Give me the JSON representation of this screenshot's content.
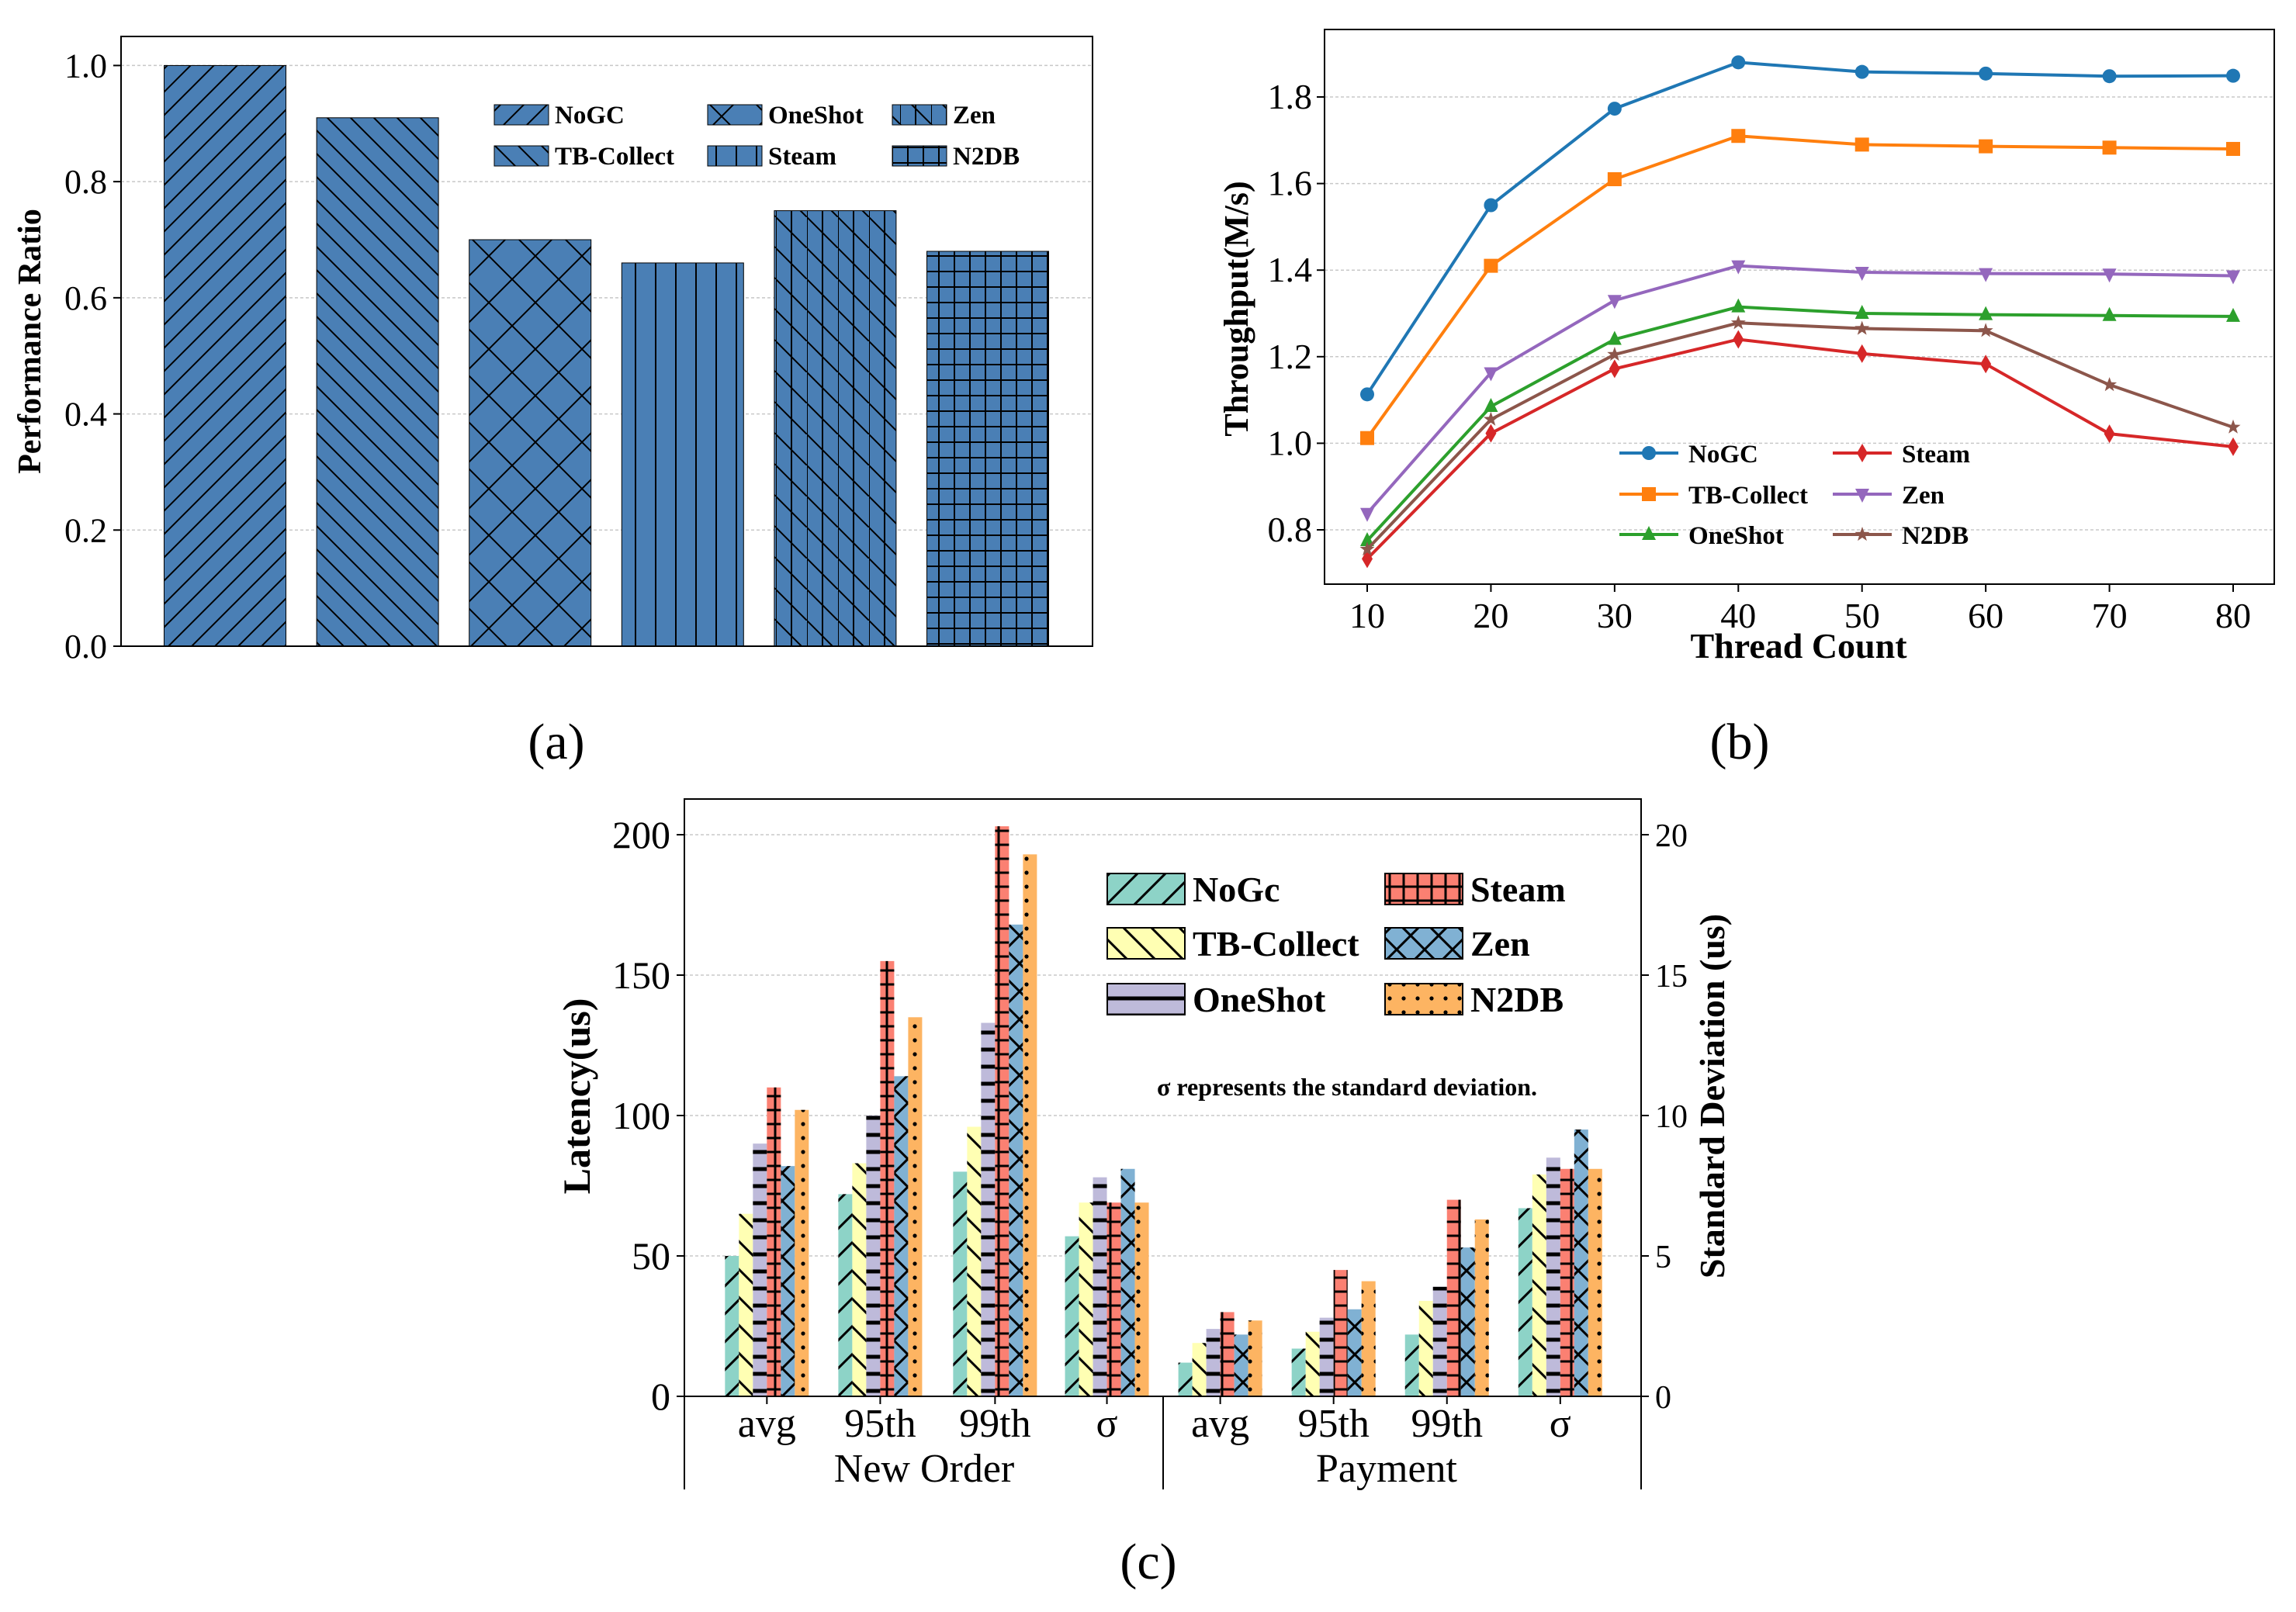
{
  "chart_data": [
    {
      "panel_label": "(a)",
      "type": "bar",
      "title": "",
      "xlabel": "",
      "ylabel": "Performance Ratio",
      "ylim": [
        0,
        1.05
      ],
      "yticks": [
        "0.0",
        "0.2",
        "0.4",
        "0.6",
        "0.8",
        "1.0"
      ],
      "grid": true,
      "legend_position": "top-right",
      "bar_color": "#4a7fb5",
      "categories": [
        "NoGC",
        "TB-Collect",
        "OneShot",
        "Steam",
        "Zen",
        "N2DB"
      ],
      "values": [
        1.0,
        0.91,
        0.7,
        0.66,
        0.75,
        0.68
      ]
    },
    {
      "panel_label": "(b)",
      "type": "line",
      "xlabel": "Thread Count",
      "ylabel": "Throughput(M/s)",
      "x": [
        10,
        20,
        30,
        40,
        50,
        60,
        70,
        80
      ],
      "xticks": [
        "10",
        "20",
        "30",
        "40",
        "50",
        "60",
        "70",
        "80"
      ],
      "yticks": [
        "0.8",
        "1.0",
        "1.2",
        "1.4",
        "1.6",
        "1.8"
      ],
      "ylim": [
        0.7,
        1.92
      ],
      "grid": true,
      "legend_position": "bottom-center",
      "series": [
        {
          "name": "NoGC",
          "color": "#1f77b4",
          "marker": "circle",
          "values": [
            1.113,
            1.55,
            1.773,
            1.88,
            1.858,
            1.854,
            1.848,
            1.849
          ]
        },
        {
          "name": "TB-Collect",
          "color": "#ff7f0e",
          "marker": "square",
          "values": [
            1.012,
            1.41,
            1.61,
            1.71,
            1.69,
            1.686,
            1.683,
            1.68
          ]
        },
        {
          "name": "OneShot",
          "color": "#2ca02c",
          "marker": "triangle-up",
          "values": [
            0.775,
            1.085,
            1.24,
            1.315,
            1.3,
            1.297,
            1.295,
            1.293
          ]
        },
        {
          "name": "Steam",
          "color": "#d62728",
          "marker": "diamond",
          "values": [
            0.733,
            1.023,
            1.172,
            1.24,
            1.207,
            1.183,
            1.022,
            0.992
          ]
        },
        {
          "name": "Zen",
          "color": "#9467bd",
          "marker": "triangle-down",
          "values": [
            0.838,
            1.163,
            1.33,
            1.41,
            1.395,
            1.392,
            1.391,
            1.387
          ]
        },
        {
          "name": "N2DB",
          "color": "#8c564b",
          "marker": "star",
          "values": [
            0.755,
            1.055,
            1.205,
            1.278,
            1.265,
            1.26,
            1.135,
            1.037
          ]
        }
      ]
    },
    {
      "panel_label": "(c)",
      "type": "bar",
      "ylabel": "Latency(us)",
      "y2label": "Standard Deviation (us)",
      "ylim": [
        0,
        212
      ],
      "y2lim": [
        0,
        21.2
      ],
      "yticks": [
        "0",
        "50",
        "100",
        "150",
        "200"
      ],
      "y2ticks": [
        "0",
        "5",
        "10",
        "15",
        "20"
      ],
      "grid": true,
      "legend_position": "top-right",
      "annotation": "σ represents the standard deviation.",
      "categories": [
        "avg",
        "95th",
        "99th",
        "σ",
        "avg",
        "95th",
        "99th",
        "σ"
      ],
      "groups": [
        "New Order",
        "Payment"
      ],
      "sigma_axis": "right",
      "series": [
        {
          "name": "NoGc",
          "color": "#8dd3c7",
          "values": [
            50,
            72,
            80,
            5.7,
            12,
            17,
            22,
            6.7
          ]
        },
        {
          "name": "TB-Collect",
          "color": "#ffffb3",
          "values": [
            65,
            83,
            96,
            6.9,
            19,
            23,
            34,
            7.9
          ]
        },
        {
          "name": "OneShot",
          "color": "#bebada",
          "values": [
            90,
            100,
            133,
            7.8,
            24,
            28,
            39,
            8.5
          ]
        },
        {
          "name": "Steam",
          "color": "#fb8072",
          "values": [
            110,
            155,
            203,
            6.9,
            30,
            45,
            70,
            8.1
          ]
        },
        {
          "name": "Zen",
          "color": "#80b1d3",
          "values": [
            82,
            114,
            168,
            8.1,
            22,
            31,
            53,
            9.5
          ]
        },
        {
          "name": "N2DB",
          "color": "#fdb462",
          "values": [
            102,
            135,
            193,
            6.9,
            27,
            41,
            63,
            8.1
          ]
        }
      ]
    }
  ]
}
